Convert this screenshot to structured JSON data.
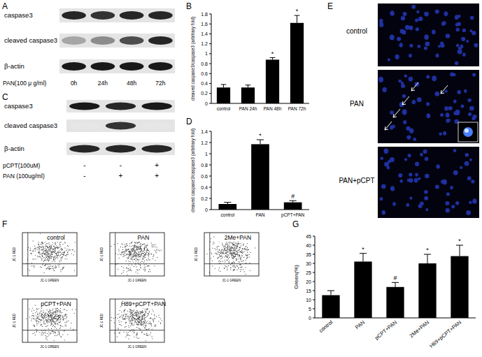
{
  "panel_labels": [
    "A",
    "B",
    "C",
    "D",
    "E",
    "F",
    "G"
  ],
  "chart_data": [
    {
      "type": "bar",
      "categories": [
        "control",
        "PAN 24h",
        "PAN 48h",
        "PAN 72h"
      ],
      "values": [
        0.32,
        0.32,
        0.88,
        1.62
      ],
      "errors": [
        0.06,
        0.05,
        0.04,
        0.15
      ],
      "annotations": [
        null,
        null,
        "*",
        "*"
      ],
      "ylabel": "cleaved caspase3/caspase3 (arbitrary fold)",
      "color": "#000000",
      "ylim": [
        0,
        1.8
      ],
      "yticks": [
        0,
        0.2,
        0.4,
        0.6,
        0.8,
        1,
        1.2,
        1.4,
        1.6,
        1.8
      ]
    },
    {
      "type": "bar",
      "categories": [
        "control",
        "PAN",
        "pCPT+PAN"
      ],
      "values": [
        0.1,
        1.17,
        0.13
      ],
      "errors": [
        0.03,
        0.08,
        0.03
      ],
      "annotations": [
        null,
        "*",
        "#"
      ],
      "ylabel": "cleaved caspase3/caspase3 (arbitrary fold)",
      "color": "#000000",
      "ylim": [
        0,
        1.4
      ],
      "yticks": [
        0,
        0.2,
        0.4,
        0.6,
        0.8,
        1,
        1.2,
        1.4
      ]
    },
    {
      "type": "bar",
      "categories": [
        "control",
        "PAN",
        "pCPT+PAN",
        "2Me+PAN",
        "H89+pCPT+PAN"
      ],
      "values": [
        12.5,
        31,
        17,
        30,
        34
      ],
      "errors": [
        2.5,
        4.5,
        2.5,
        5,
        6
      ],
      "annotations": [
        null,
        "*",
        "#",
        "*",
        "*"
      ],
      "ylabel": "Green(%)",
      "color": "#000000",
      "ylim": [
        0,
        45
      ],
      "yticks": [
        0,
        5,
        10,
        15,
        20,
        25,
        30,
        35,
        40,
        45
      ]
    }
  ],
  "blots": [
    {
      "rows": [
        {
          "label": "caspase3",
          "intensity": [
            0.85,
            0.8,
            0.85,
            0.85
          ]
        },
        {
          "label": "cleaved caspase3",
          "intensity": [
            0.35,
            0.45,
            0.7,
            0.85
          ]
        },
        {
          "label": "β-actin",
          "intensity": [
            0.9,
            0.9,
            0.9,
            0.9
          ]
        }
      ],
      "lane_header": "PAN(100 μ g/ml)",
      "lanes": [
        "0h",
        "24h",
        "48h",
        "72h"
      ]
    },
    {
      "rows": [
        {
          "label": "caspase3",
          "intensity": [
            0.9,
            0.85,
            0.9
          ]
        },
        {
          "label": "cleaved caspase3",
          "intensity": [
            0.1,
            0.8,
            0.1
          ]
        },
        {
          "label": "β-actin",
          "intensity": [
            0.85,
            0.85,
            0.85
          ]
        }
      ],
      "conditions": [
        {
          "label": "pCPT(100uM)",
          "signs": [
            "-",
            "-",
            "+"
          ]
        },
        {
          "label": "PAN (100ug/ml)",
          "signs": [
            "-",
            "+",
            "+"
          ]
        }
      ]
    }
  ],
  "micrographs": {
    "labels": [
      "control",
      "PAN",
      "PAN+pCPT"
    ]
  },
  "flow_plots": {
    "labels": [
      "control",
      "PAN",
      "2Me+PAN",
      "pCPT+PAN",
      "H89+pCPT+PAN"
    ],
    "x_label": "JC-1 GREEN",
    "y_label": "JC-1 RED"
  }
}
